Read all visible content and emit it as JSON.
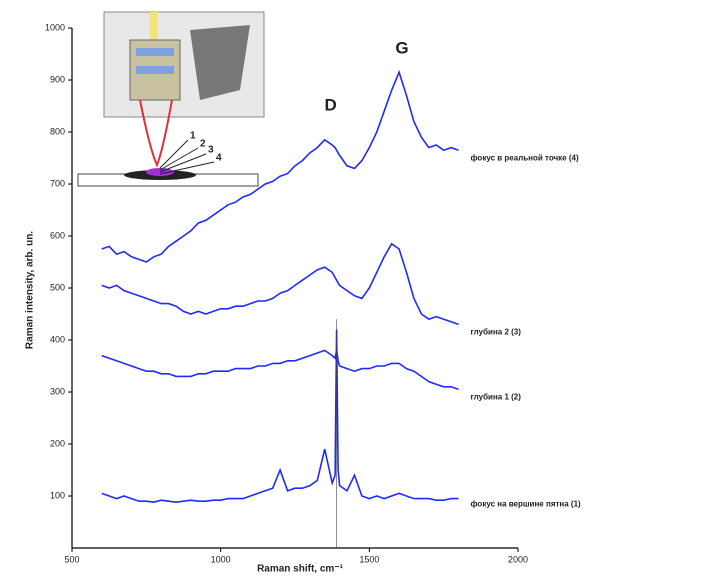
{
  "chart_data": {
    "type": "line",
    "x_label": "Raman shift, cm⁻¹",
    "y_label": "Raman intensity, arb. un.",
    "annotations": [
      "D",
      "G"
    ],
    "inset_labels": [
      "1",
      "2",
      "3",
      "4"
    ],
    "x": [
      600,
      625,
      650,
      675,
      700,
      725,
      750,
      775,
      800,
      825,
      850,
      875,
      900,
      925,
      950,
      975,
      1000,
      1025,
      1050,
      1075,
      1100,
      1125,
      1150,
      1175,
      1200,
      1225,
      1250,
      1275,
      1300,
      1325,
      1350,
      1375,
      1385,
      1390,
      1395,
      1400,
      1425,
      1450,
      1475,
      1500,
      1525,
      1550,
      1575,
      1600,
      1625,
      1650,
      1675,
      1700,
      1725,
      1750,
      1775,
      1800
    ],
    "series": [
      {
        "name": "фокус на вершине пятна (1)",
        "color": "#1f2bff",
        "values": [
          105,
          100,
          95,
          100,
          95,
          90,
          90,
          88,
          92,
          90,
          88,
          90,
          92,
          90,
          90,
          92,
          92,
          95,
          95,
          95,
          100,
          105,
          110,
          115,
          150,
          110,
          115,
          115,
          120,
          130,
          190,
          125,
          140,
          420,
          150,
          120,
          110,
          140,
          100,
          95,
          100,
          95,
          100,
          105,
          100,
          95,
          95,
          95,
          92,
          92,
          95,
          95
        ]
      },
      {
        "name": "глубина 1 (2)",
        "color": "#1f2bff",
        "values": [
          370,
          365,
          360,
          355,
          350,
          345,
          340,
          340,
          335,
          335,
          330,
          330,
          330,
          335,
          335,
          340,
          340,
          340,
          345,
          345,
          345,
          350,
          350,
          355,
          355,
          360,
          360,
          365,
          370,
          375,
          380,
          370,
          365,
          380,
          360,
          350,
          345,
          340,
          345,
          345,
          350,
          350,
          355,
          355,
          345,
          340,
          330,
          320,
          315,
          310,
          310,
          305
        ]
      },
      {
        "name": "глубина 2 (3)",
        "color": "#1f2bff",
        "values": [
          505,
          500,
          505,
          495,
          490,
          485,
          480,
          475,
          470,
          470,
          465,
          455,
          450,
          455,
          450,
          455,
          460,
          460,
          465,
          465,
          470,
          475,
          475,
          480,
          490,
          495,
          505,
          515,
          525,
          535,
          540,
          530,
          520,
          515,
          510,
          505,
          495,
          485,
          480,
          500,
          530,
          560,
          585,
          575,
          530,
          480,
          450,
          440,
          445,
          440,
          435,
          430
        ]
      },
      {
        "name": "фокус в реальной точке (4)",
        "color": "#1f2bff",
        "values": [
          575,
          580,
          565,
          570,
          560,
          555,
          550,
          560,
          565,
          580,
          590,
          600,
          610,
          625,
          630,
          640,
          650,
          660,
          665,
          675,
          680,
          690,
          700,
          705,
          715,
          720,
          735,
          745,
          760,
          770,
          785,
          775,
          770,
          765,
          760,
          755,
          735,
          730,
          745,
          770,
          800,
          840,
          880,
          915,
          870,
          820,
          790,
          770,
          775,
          765,
          770,
          765
        ]
      }
    ],
    "xlim": [
      500,
      2000
    ],
    "xticks": [
      500,
      1000,
      1500,
      2000
    ],
    "ylim": [
      0,
      1000
    ],
    "yticks": [
      100,
      200,
      300,
      400,
      500,
      600,
      700,
      800,
      900,
      1000
    ]
  }
}
